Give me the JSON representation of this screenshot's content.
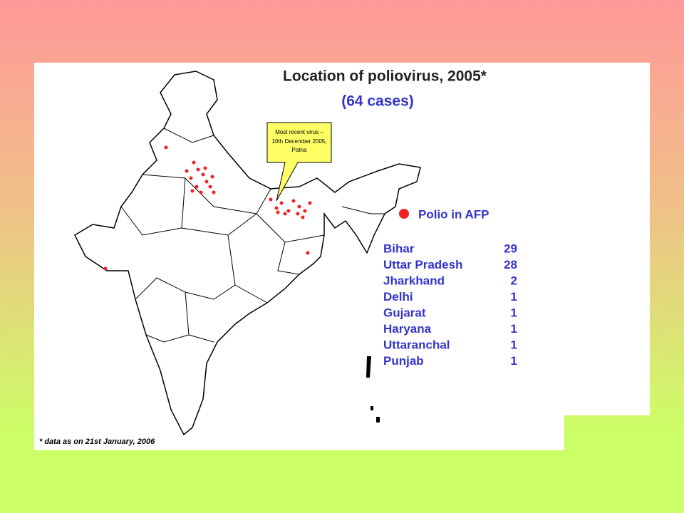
{
  "title": "Location of poliovirus, 2005*",
  "subtitle": "(64 cases)",
  "callout": [
    "Most recent virus –",
    "10th December 2005,",
    "Patna"
  ],
  "legend": "Polio in AFP",
  "table": {
    "rows": [
      [
        "Bihar",
        29
      ],
      [
        "Uttar Pradesh",
        28
      ],
      [
        "Jharkhand",
        2
      ],
      [
        "Delhi",
        1
      ],
      [
        "Gujarat",
        1
      ],
      [
        "Haryana",
        1
      ],
      [
        "Uttaranchal",
        1
      ],
      [
        "Punjab",
        1
      ]
    ]
  },
  "footnote": "* data as on 21st January, 2006"
}
